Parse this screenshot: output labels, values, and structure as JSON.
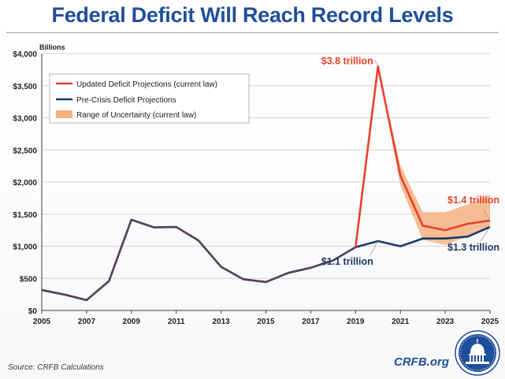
{
  "title": "Federal Deficit Will Reach Record Levels",
  "source": "Source: CRFB Calculations",
  "brand": "CRFB.org",
  "colors": {
    "title": "#1f4e9b",
    "updated": "#e8412d",
    "precrisis": "#1a3966",
    "range": "#f4b183",
    "dotted": "#e8412d"
  },
  "chart_data": {
    "type": "line",
    "ylabel": "Billions",
    "xlabel": "",
    "xlim": [
      2005,
      2025
    ],
    "ylim": [
      0,
      4000
    ],
    "x_ticks": [
      "2005",
      "2007",
      "2009",
      "2011",
      "2013",
      "2015",
      "2017",
      "2019",
      "2021",
      "2023",
      "2025"
    ],
    "y_ticks": [
      "$0",
      "$500",
      "$1,000",
      "$1,500",
      "$2,000",
      "$2,500",
      "$3,000",
      "$3,500",
      "$4,000"
    ],
    "grid": true,
    "legend_position": "top-left",
    "series": [
      {
        "name": "Updated Deficit Projections (current law)",
        "x": [
          2005,
          2006,
          2007,
          2008,
          2009,
          2010,
          2011,
          2012,
          2013,
          2014,
          2015,
          2016,
          2017,
          2018,
          2019,
          2020,
          2021,
          2022,
          2023,
          2024,
          2025
        ],
        "values": [
          318,
          248,
          161,
          459,
          1413,
          1294,
          1300,
          1087,
          680,
          485,
          442,
          585,
          665,
          779,
          984,
          3800,
          2100,
          1320,
          1250,
          1350,
          1400
        ]
      },
      {
        "name": "Pre-Crisis Deficit Projections",
        "x": [
          2005,
          2006,
          2007,
          2008,
          2009,
          2010,
          2011,
          2012,
          2013,
          2014,
          2015,
          2016,
          2017,
          2018,
          2019,
          2020,
          2021,
          2022,
          2023,
          2024,
          2025
        ],
        "values": [
          318,
          248,
          161,
          459,
          1413,
          1294,
          1300,
          1087,
          680,
          485,
          442,
          585,
          665,
          779,
          984,
          1080,
          1000,
          1120,
          1120,
          1150,
          1300
        ]
      },
      {
        "name": "Range of Uncertainty (current law)",
        "type": "area-band",
        "x": [
          2020,
          2021,
          2022,
          2023,
          2024,
          2025
        ],
        "low": [
          3800,
          1950,
          1100,
          1020,
          1150,
          1300
        ],
        "high": [
          3800,
          2260,
          1530,
          1530,
          1650,
          1800
        ]
      }
    ],
    "annotations": [
      {
        "text": "$3.8 trillion",
        "x": 2020,
        "y": 3800,
        "color": "#e8412d"
      },
      {
        "text": "$1.4 trillion",
        "x": 2025,
        "y": 1400,
        "color": "#e8412d"
      },
      {
        "text": "$1.1 trillion",
        "x": 2020,
        "y": 1080,
        "color": "#1a3966"
      },
      {
        "text": "$1.3 trillion",
        "x": 2025,
        "y": 1300,
        "color": "#1a3966"
      }
    ]
  }
}
